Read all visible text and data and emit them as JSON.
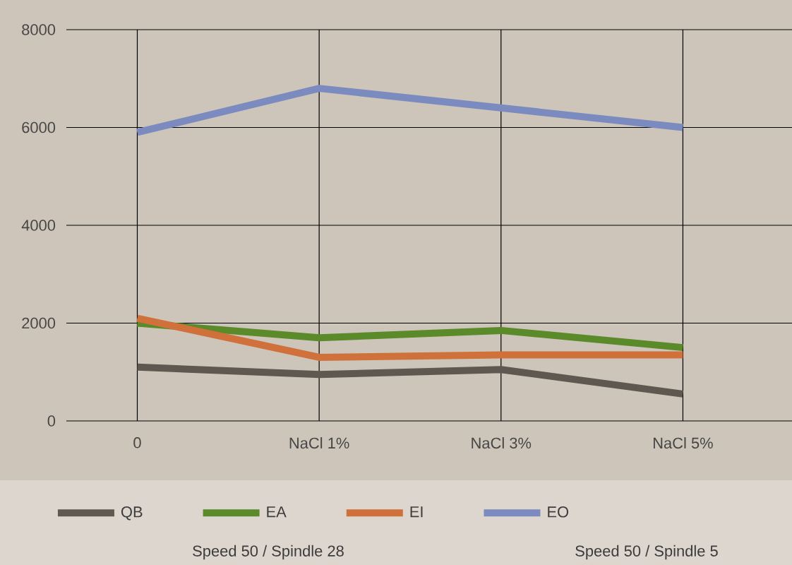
{
  "chart_data": {
    "type": "line",
    "categories": [
      "0",
      "NaCl 1%",
      "NaCl 3%",
      "NaCl 5%"
    ],
    "series": [
      {
        "name": "QB",
        "color": "#5f5850",
        "values": [
          1100,
          950,
          1050,
          550
        ]
      },
      {
        "name": "EA",
        "color": "#5a8a2a",
        "values": [
          2000,
          1700,
          1850,
          1500
        ]
      },
      {
        "name": "EI",
        "color": "#d0703a",
        "values": [
          2100,
          1300,
          1350,
          1350
        ]
      },
      {
        "name": "EO",
        "color": "#7b8bbf",
        "values": [
          5900,
          6800,
          6400,
          6000
        ]
      }
    ],
    "ylim": [
      0,
      8000
    ],
    "yticks": [
      0,
      2000,
      4000,
      6000,
      8000
    ],
    "grid": true,
    "legend": "bottom",
    "marker": "none",
    "line_style": "solid",
    "annotations": [
      "Speed 50 / Spindle 28",
      "Speed 50 / Spindle 5"
    ]
  }
}
